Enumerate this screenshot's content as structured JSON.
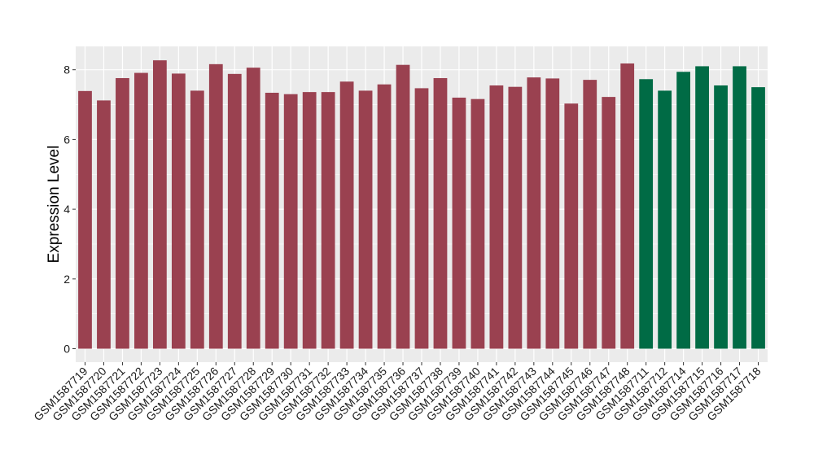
{
  "chart_data": {
    "type": "bar",
    "title": "",
    "xlabel": "",
    "ylabel": "Expression Level",
    "ylim": [
      0,
      8.8
    ],
    "yticks": [
      0,
      2,
      4,
      6,
      8
    ],
    "grid": true,
    "legend": "none",
    "colors": {
      "group_a": "#9a4150",
      "group_b": "#006b45",
      "panel_bg": "#ebebeb",
      "grid": "#ffffff"
    },
    "categories": [
      "GSM1587719",
      "GSM1587720",
      "GSM1587721",
      "GSM1587722",
      "GSM1587723",
      "GSM1587724",
      "GSM1587725",
      "GSM1587726",
      "GSM1587727",
      "GSM1587728",
      "GSM1587729",
      "GSM1587730",
      "GSM1587731",
      "GSM1587732",
      "GSM1587733",
      "GSM1587734",
      "GSM1587735",
      "GSM1587736",
      "GSM1587737",
      "GSM1587738",
      "GSM1587739",
      "GSM1587740",
      "GSM1587741",
      "GSM1587742",
      "GSM1587743",
      "GSM1587744",
      "GSM1587745",
      "GSM1587746",
      "GSM1587747",
      "GSM1587748",
      "GSM1587711",
      "GSM1587712",
      "GSM1587714",
      "GSM1587715",
      "GSM1587716",
      "GSM1587717",
      "GSM1587718"
    ],
    "values": [
      7.39,
      7.12,
      7.76,
      7.91,
      8.27,
      7.89,
      7.4,
      8.16,
      7.88,
      8.06,
      7.34,
      7.3,
      7.36,
      7.36,
      7.66,
      7.4,
      7.58,
      8.14,
      7.47,
      7.76,
      7.2,
      7.16,
      7.55,
      7.51,
      7.78,
      7.75,
      7.03,
      7.71,
      7.22,
      8.18,
      7.73,
      7.4,
      7.94,
      8.1,
      7.55,
      8.1,
      7.5
    ],
    "groups": [
      "a",
      "a",
      "a",
      "a",
      "a",
      "a",
      "a",
      "a",
      "a",
      "a",
      "a",
      "a",
      "a",
      "a",
      "a",
      "a",
      "a",
      "a",
      "a",
      "a",
      "a",
      "a",
      "a",
      "a",
      "a",
      "a",
      "a",
      "a",
      "a",
      "a",
      "b",
      "b",
      "b",
      "b",
      "b",
      "b",
      "b"
    ]
  }
}
